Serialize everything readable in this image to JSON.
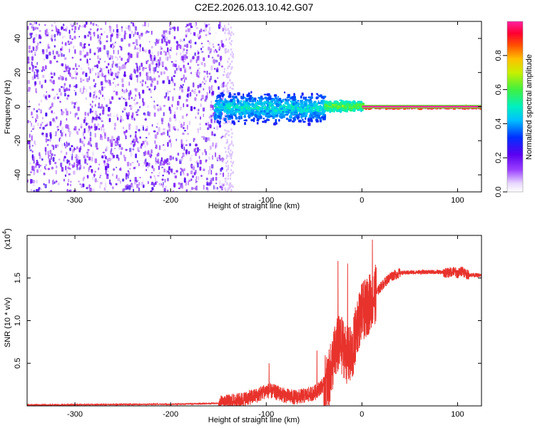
{
  "title": "C2E2.2026.013.10.42.G07",
  "chart_data": [
    {
      "type": "heatmap",
      "name": "spectrogram",
      "xlabel": "Height of straight line (km)",
      "ylabel": "Frequency (Hz)",
      "xlim": [
        -350,
        125
      ],
      "ylim": [
        -50,
        50
      ],
      "xticks": [
        -300,
        -200,
        -100,
        0,
        100
      ],
      "yticks": [
        -40,
        -20,
        0,
        20,
        40
      ],
      "grid": false,
      "colorbar": {
        "label": "Normalized spectral amplitude",
        "range": [
          0,
          1
        ],
        "ticks": [
          "0.0",
          "0.2",
          "0.4",
          "0.6",
          "0.8"
        ],
        "tick_values": [
          0.0,
          0.2,
          0.4,
          0.6,
          0.8
        ],
        "colormap": "white-violet-blue-cyan-green-yellow-red-magenta"
      },
      "features": [
        {
          "label": "diffuse noise",
          "x_range": [
            -350,
            -145
          ],
          "f_range": [
            -50,
            50
          ],
          "amplitude": [
            0.05,
            0.25
          ]
        },
        {
          "label": "signal band",
          "x_range": [
            -155,
            -40
          ],
          "f_center": 0,
          "f_halfwidth": 8,
          "amplitude": [
            0.25,
            0.55
          ]
        },
        {
          "label": "narrowing carrier",
          "x_range": [
            -40,
            0
          ],
          "f_center": 1,
          "f_halfwidth": 3,
          "amplitude": [
            0.4,
            0.7
          ]
        },
        {
          "label": "carrier line",
          "x_range": [
            0,
            125
          ],
          "f_center": 0,
          "f_halfwidth": 1,
          "amplitude": [
            0.85,
            1.0
          ]
        }
      ]
    },
    {
      "type": "line",
      "name": "snr",
      "xlabel": "Height of straight line (km)",
      "ylabel": "SNR (10 * v/v)",
      "scale_label": "(x10",
      "scale_exponent": "4",
      "xlim": [
        -350,
        125
      ],
      "ylim": [
        0,
        2.0
      ],
      "xticks": [
        -300,
        -200,
        -100,
        0,
        100
      ],
      "yticks": [
        0.5,
        1.0,
        1.5
      ],
      "ytick_labels": [
        "0.5",
        "1.0",
        "1.5"
      ],
      "grid": false,
      "series": [
        {
          "name": "SNR",
          "color": "#e8322c",
          "x": [
            -350,
            -200,
            -150,
            -130,
            -110,
            -100,
            -90,
            -80,
            -70,
            -60,
            -50,
            -40,
            -35,
            -30,
            -25,
            -20,
            -15,
            -10,
            -5,
            0,
            5,
            10,
            20,
            30,
            40,
            60,
            80,
            90,
            95,
            100,
            105,
            110,
            125
          ],
          "y": [
            0.01,
            0.02,
            0.03,
            0.06,
            0.12,
            0.18,
            0.16,
            0.12,
            0.1,
            0.12,
            0.15,
            0.25,
            0.28,
            0.55,
            0.72,
            0.7,
            0.58,
            0.6,
            0.95,
            1.1,
            1.15,
            1.25,
            1.4,
            1.52,
            1.56,
            1.57,
            1.57,
            1.56,
            1.58,
            1.55,
            1.59,
            1.54,
            1.53
          ]
        }
      ],
      "peaks": [
        {
          "x": -97,
          "y": 0.5
        },
        {
          "x": -47,
          "y": 0.65
        },
        {
          "x": -25,
          "y": 1.7
        },
        {
          "x": -15,
          "y": 1.67
        },
        {
          "x": 11,
          "y": 1.95
        },
        {
          "x": 98,
          "y": 1.62
        }
      ]
    }
  ]
}
